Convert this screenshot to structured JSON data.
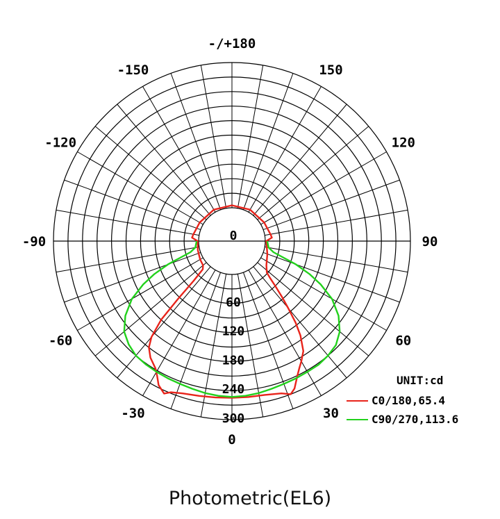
{
  "caption": "Photometric(EL6)",
  "chart_data": {
    "type": "polar",
    "unit_label": "UNIT:cd",
    "angle_labels": [
      {
        "angle": 180,
        "text": "-/+180"
      },
      {
        "angle": 150,
        "text": "150"
      },
      {
        "angle": 120,
        "text": "120"
      },
      {
        "angle": 90,
        "text": "90"
      },
      {
        "angle": 60,
        "text": "60"
      },
      {
        "angle": 30,
        "text": "30"
      },
      {
        "angle": 0,
        "text": "0"
      },
      {
        "angle": -30,
        "text": "-30"
      },
      {
        "angle": -60,
        "text": "-60"
      },
      {
        "angle": -90,
        "text": "-90"
      },
      {
        "angle": -120,
        "text": "-120"
      },
      {
        "angle": -150,
        "text": "-150"
      }
    ],
    "radial_ticks": [
      0,
      60,
      120,
      180,
      240,
      300
    ],
    "radial_max": 300,
    "radial_step_minor": 30,
    "angle_grid_step": 10,
    "legend_position": "bottom-right",
    "series": [
      {
        "name": "C0/180,65.4",
        "color": "#e8231a",
        "points": [
          [
            -180,
            5
          ],
          [
            -150,
            6
          ],
          [
            -120,
            8
          ],
          [
            -100,
            12
          ],
          [
            -95,
            14
          ],
          [
            -90,
            2
          ],
          [
            -75,
            4
          ],
          [
            -60,
            7
          ],
          [
            -50,
            9
          ],
          [
            -46,
            15
          ],
          [
            -44,
            45
          ],
          [
            -43,
            95
          ],
          [
            -42,
            150
          ],
          [
            -40,
            190
          ],
          [
            -38,
            210
          ],
          [
            -35,
            225
          ],
          [
            -31,
            238
          ],
          [
            -29,
            250
          ],
          [
            -27,
            265
          ],
          [
            -24,
            276
          ],
          [
            -22,
            268
          ],
          [
            -18,
            262
          ],
          [
            -12,
            258
          ],
          [
            -6,
            256
          ],
          [
            0,
            255
          ],
          [
            6,
            255
          ],
          [
            12,
            256
          ],
          [
            18,
            262
          ],
          [
            21,
            270
          ],
          [
            23,
            262
          ],
          [
            26,
            240
          ],
          [
            28,
            228
          ],
          [
            30,
            218
          ],
          [
            33,
            202
          ],
          [
            36,
            172
          ],
          [
            38,
            145
          ],
          [
            40,
            112
          ],
          [
            42,
            85
          ],
          [
            44,
            60
          ],
          [
            46,
            40
          ],
          [
            48,
            28
          ],
          [
            55,
            18
          ],
          [
            70,
            9
          ],
          [
            90,
            2
          ],
          [
            95,
            14
          ],
          [
            100,
            12
          ],
          [
            120,
            8
          ],
          [
            150,
            6
          ],
          [
            180,
            5
          ]
        ]
      },
      {
        "name": "C90/270,113.6",
        "color": "#22d11c",
        "points": [
          [
            -90,
            4
          ],
          [
            -80,
            8
          ],
          [
            -75,
            20
          ],
          [
            -72,
            45
          ],
          [
            -70,
            72
          ],
          [
            -67,
            105
          ],
          [
            -64,
            135
          ],
          [
            -60,
            170
          ],
          [
            -55,
            200
          ],
          [
            -50,
            222
          ],
          [
            -45,
            233
          ],
          [
            -40,
            240
          ],
          [
            -35,
            242
          ],
          [
            -30,
            243
          ],
          [
            -25,
            244
          ],
          [
            -20,
            245
          ],
          [
            -15,
            247
          ],
          [
            -10,
            250
          ],
          [
            -5,
            252
          ],
          [
            0,
            253
          ],
          [
            5,
            252
          ],
          [
            10,
            250
          ],
          [
            15,
            247
          ],
          [
            20,
            245
          ],
          [
            25,
            244
          ],
          [
            30,
            243
          ],
          [
            35,
            243
          ],
          [
            40,
            240
          ],
          [
            45,
            235
          ],
          [
            50,
            222
          ],
          [
            55,
            200
          ],
          [
            60,
            170
          ],
          [
            64,
            135
          ],
          [
            67,
            105
          ],
          [
            70,
            72
          ],
          [
            72,
            45
          ],
          [
            75,
            20
          ],
          [
            80,
            8
          ],
          [
            90,
            4
          ]
        ]
      }
    ]
  }
}
